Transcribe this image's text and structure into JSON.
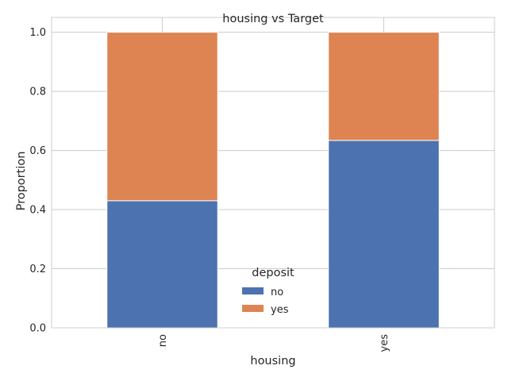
{
  "chart_data": {
    "type": "bar",
    "stacked": true,
    "title": "housing vs Target",
    "xlabel": "housing",
    "ylabel": "Proportion",
    "categories": [
      "no",
      "yes"
    ],
    "series": [
      {
        "name": "no",
        "values": [
          0.43,
          0.634
        ],
        "color": "#4c72b0"
      },
      {
        "name": "yes",
        "values": [
          0.57,
          0.366
        ],
        "color": "#dd8452"
      }
    ],
    "ylim": [
      0,
      1.05
    ],
    "yticks": [
      0.0,
      0.2,
      0.4,
      0.6,
      0.8,
      1.0
    ],
    "ytick_labels": [
      "0.0",
      "0.2",
      "0.4",
      "0.6",
      "0.8",
      "1.0"
    ],
    "grid": true,
    "legend": {
      "title": "deposit",
      "placement": "lower-center"
    },
    "xtick_rotation": "vertical"
  }
}
